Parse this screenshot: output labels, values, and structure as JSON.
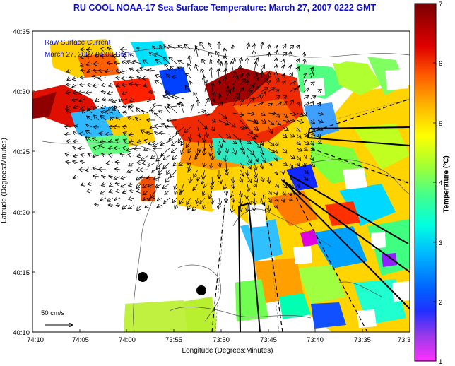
{
  "title": "RU COOL  NOAA-17  Sea Surface Temperature:  March 27, 2007 0222 GMT",
  "overlay": {
    "line1": "Raw Surface Current",
    "line2": "March 27, 2007 04:00 GMT"
  },
  "axes": {
    "xlabel": "Longitude (Degrees:Minutes)",
    "ylabel": "Latitude (Degrees:Minutes)",
    "xticks": [
      "74:10",
      "74:05",
      "74:00",
      "73:55",
      "73:50",
      "73:45",
      "73:40",
      "73:35",
      "73:3"
    ],
    "yticks": [
      "40:35",
      "40:30",
      "40:25",
      "40:20",
      "40:15",
      "40:10"
    ]
  },
  "colorbar": {
    "label": "Temperature (°C)",
    "ticks": [
      "1",
      "2",
      "3",
      "4",
      "5",
      "6",
      "7"
    ],
    "range": [
      1,
      7
    ],
    "colors": [
      "#ff30ff",
      "#7a2be0",
      "#0010ff",
      "#00a0ff",
      "#00ffee",
      "#30ff90",
      "#b0ff20",
      "#ffff00",
      "#ffb000",
      "#ff5000",
      "#e00000",
      "#800000"
    ]
  },
  "scale_arrow": {
    "label": "50 cm/s"
  },
  "colors": {
    "title": "#1010c8",
    "land": "#ffffff",
    "nodata": "#ffffff"
  }
}
